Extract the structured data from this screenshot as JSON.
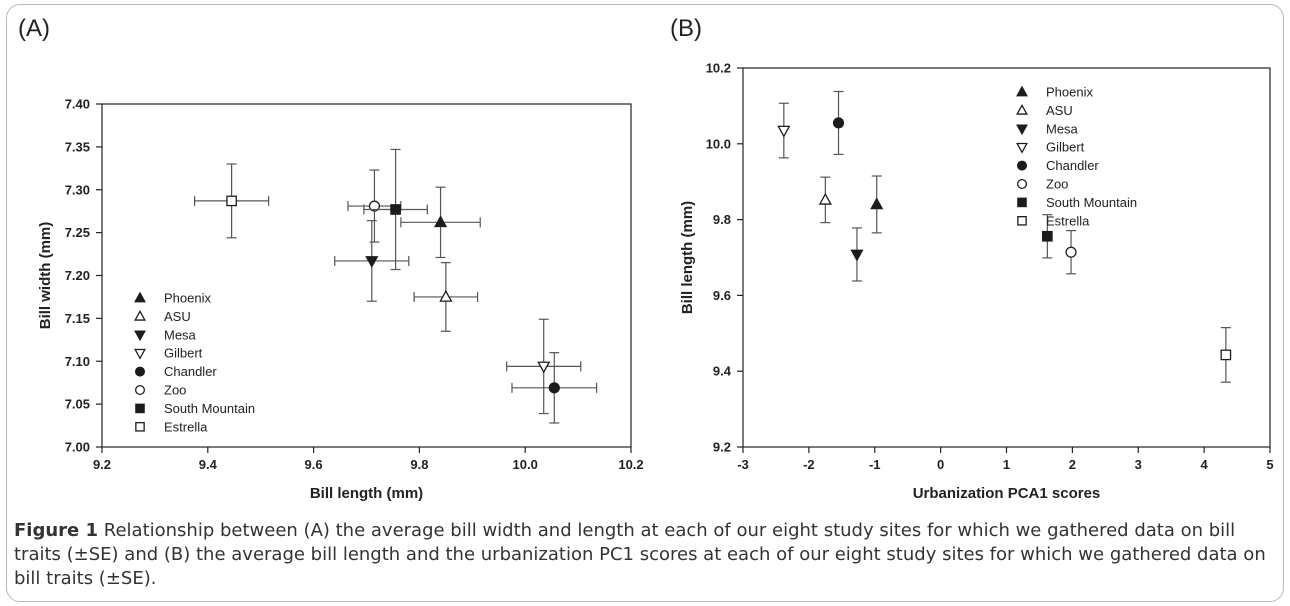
{
  "colors": {
    "marker": "#1c1c1c",
    "axis": "#222222",
    "errorbar": "#555555",
    "frame": "#b9b9b9"
  },
  "chart_data": [
    {
      "panel_label": "(A)",
      "type": "scatter",
      "xlabel": "Bill length (mm)",
      "ylabel": "Bill width (mm)",
      "xlim": [
        9.2,
        10.2
      ],
      "ylim": [
        7.0,
        7.4
      ],
      "xticks": [
        "9.2",
        "9.4",
        "9.6",
        "9.8",
        "10.0",
        "10.2"
      ],
      "yticks": [
        "7.00",
        "7.05",
        "7.10",
        "7.15",
        "7.20",
        "7.25",
        "7.30",
        "7.35",
        "7.40"
      ],
      "legend_position": "bottom-left",
      "grid": false,
      "series": [
        {
          "name": "Phoenix",
          "marker": "triangle-up-filled",
          "x": 9.84,
          "y": 7.262,
          "xerr": 0.075,
          "yerr": 0.041
        },
        {
          "name": "ASU",
          "marker": "triangle-up-open",
          "x": 9.85,
          "y": 7.175,
          "xerr": 0.06,
          "yerr": 0.04
        },
        {
          "name": "Mesa",
          "marker": "triangle-down-filled",
          "x": 9.71,
          "y": 7.217,
          "xerr": 0.07,
          "yerr": 0.047
        },
        {
          "name": "Gilbert",
          "marker": "triangle-down-open",
          "x": 10.035,
          "y": 7.094,
          "xerr": 0.07,
          "yerr": 0.055
        },
        {
          "name": "Chandler",
          "marker": "circle-filled",
          "x": 10.055,
          "y": 7.069,
          "xerr": 0.08,
          "yerr": 0.041
        },
        {
          "name": "Zoo",
          "marker": "circle-open",
          "x": 9.715,
          "y": 7.281,
          "xerr": 0.05,
          "yerr": 0.042
        },
        {
          "name": "South Mountain",
          "marker": "square-filled",
          "x": 9.755,
          "y": 7.277,
          "xerr": 0.06,
          "yerr": 0.07
        },
        {
          "name": "Estrella",
          "marker": "square-open",
          "x": 9.445,
          "y": 7.287,
          "xerr": 0.07,
          "yerr": 0.043
        }
      ]
    },
    {
      "panel_label": "(B)",
      "type": "scatter",
      "xlabel": "Urbanization PCA1 scores",
      "ylabel": "Bill length (mm)",
      "xlim": [
        -3,
        5
      ],
      "ylim": [
        9.2,
        10.2
      ],
      "xticks": [
        "-3",
        "-2",
        "-1",
        "0",
        "1",
        "2",
        "3",
        "4",
        "5"
      ],
      "yticks": [
        "9.2",
        "9.4",
        "9.6",
        "9.8",
        "10.0",
        "10.2"
      ],
      "legend_position": "top-right",
      "grid": false,
      "series": [
        {
          "name": "Phoenix",
          "marker": "triangle-up-filled",
          "x": -0.97,
          "y": 9.84,
          "yerr": 0.075
        },
        {
          "name": "ASU",
          "marker": "triangle-up-open",
          "x": -1.75,
          "y": 9.852,
          "yerr": 0.06
        },
        {
          "name": "Mesa",
          "marker": "triangle-down-filled",
          "x": -1.27,
          "y": 9.708,
          "yerr": 0.07
        },
        {
          "name": "Gilbert",
          "marker": "triangle-down-open",
          "x": -2.38,
          "y": 10.035,
          "yerr": 0.072
        },
        {
          "name": "Chandler",
          "marker": "circle-filled",
          "x": -1.55,
          "y": 10.055,
          "yerr": 0.083
        },
        {
          "name": "Zoo",
          "marker": "circle-open",
          "x": 1.98,
          "y": 9.714,
          "yerr": 0.057
        },
        {
          "name": "South Mountain",
          "marker": "square-filled",
          "x": 1.62,
          "y": 9.756,
          "yerr": 0.057
        },
        {
          "name": "Estrella",
          "marker": "square-open",
          "x": 4.33,
          "y": 9.443,
          "yerr": 0.072
        }
      ]
    }
  ],
  "caption": {
    "label": "Figure 1",
    "text": " Relationship between (A) the average bill width and length at each of our eight study sites for which we gathered data on bill traits (±SE) and (B) the average bill length and the urbanization PC1 scores at each of our eight study sites for which we gathered data on bill traits (±SE)."
  }
}
